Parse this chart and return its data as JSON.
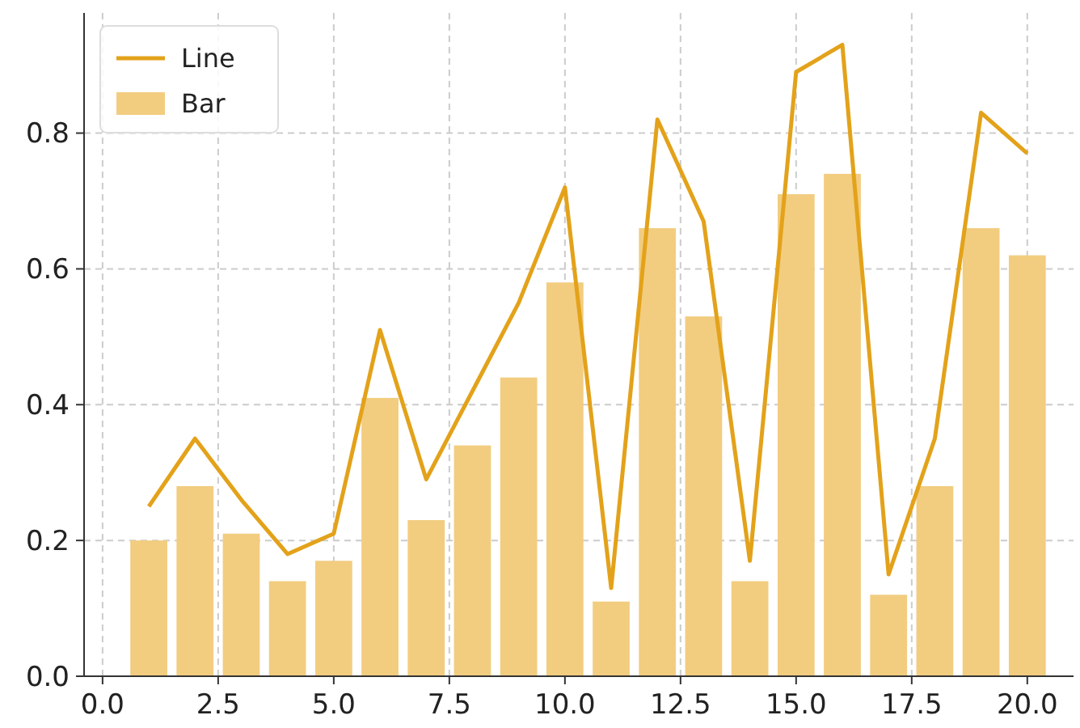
{
  "chart_data": {
    "type": "bar",
    "x": [
      1,
      2,
      3,
      4,
      5,
      6,
      7,
      8,
      9,
      10,
      11,
      12,
      13,
      14,
      15,
      16,
      17,
      18,
      19,
      20
    ],
    "series": [
      {
        "name": "Line",
        "type": "line",
        "color": "#e3a21a",
        "values": [
          0.25,
          0.35,
          0.26,
          0.18,
          0.21,
          0.51,
          0.29,
          0.42,
          0.55,
          0.72,
          0.13,
          0.82,
          0.67,
          0.17,
          0.89,
          0.93,
          0.15,
          0.35,
          0.83,
          0.77
        ]
      },
      {
        "name": "Bar",
        "color": "#f2cd80",
        "values": [
          0.2,
          0.28,
          0.21,
          0.14,
          0.17,
          0.41,
          0.23,
          0.34,
          0.44,
          0.58,
          0.11,
          0.66,
          0.53,
          0.14,
          0.71,
          0.74,
          0.12,
          0.28,
          0.66,
          0.62
        ]
      }
    ],
    "xlim": [
      -0.4,
      21
    ],
    "xticks": [
      {
        "value": 0,
        "label": "0.0"
      },
      2.5,
      {
        "value": 5,
        "label": "5.0"
      },
      7.5,
      {
        "value": 10,
        "label": "10.0"
      },
      12.5,
      {
        "value": 15,
        "label": "15.0"
      },
      17.5,
      {
        "value": 20,
        "label": "20.0"
      }
    ],
    "ylim": [
      0,
      0.977
    ],
    "yticks": [
      {
        "value": 0,
        "label": "0.0"
      },
      0.2,
      0.4,
      0.6,
      0.8
    ],
    "grid": true,
    "legend": "top left"
  }
}
